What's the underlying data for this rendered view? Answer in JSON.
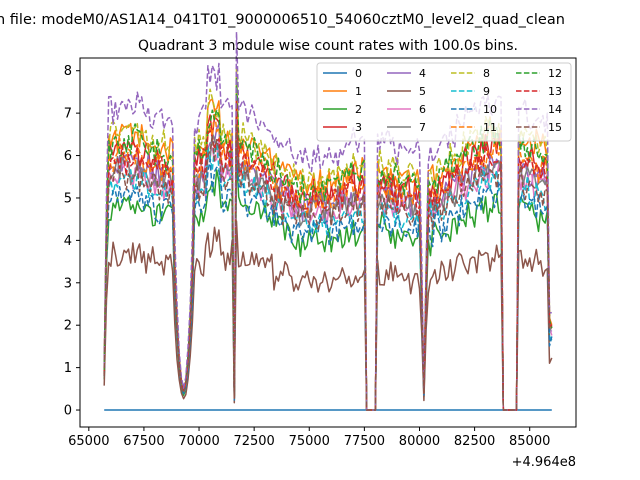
{
  "figure": {
    "suptitle": "n file: modeM0/AS1A14_041T01_9000006510_54060cztM0_level2_quad_clean"
  },
  "chart_data": {
    "type": "line",
    "title": "Quadrant 3 module wise count rates with 100.0s bins.",
    "xlabel": "",
    "ylabel": "",
    "x_offset_label": "+4.964e8",
    "xlim": [
      64600,
      87100
    ],
    "ylim": [
      -0.4,
      8.3
    ],
    "x_ticks": [
      65000,
      67500,
      70000,
      72500,
      75000,
      77500,
      80000,
      82500,
      85000
    ],
    "x_tick_labels": [
      "65000",
      "67500",
      "70000",
      "72500",
      "75000",
      "77500",
      "80000",
      "82500",
      "85000"
    ],
    "y_ticks": [
      0,
      1,
      2,
      3,
      4,
      5,
      6,
      7,
      8
    ],
    "y_tick_labels": [
      "0",
      "1",
      "2",
      "3",
      "4",
      "5",
      "6",
      "7",
      "8"
    ],
    "grid": false,
    "legend": {
      "location": "top-right",
      "columns": 4
    },
    "x_start": 65700,
    "x_end": 86000,
    "bin_seconds": 100,
    "dips": [
      {
        "start": 68900,
        "end": 69700,
        "type": "saa"
      },
      {
        "start": 71600,
        "end": 71750,
        "type": "spike"
      },
      {
        "start": 77550,
        "end": 78000,
        "type": "gap"
      },
      {
        "start": 80100,
        "end": 80300,
        "type": "saa"
      },
      {
        "start": 83750,
        "end": 84450,
        "type": "gap"
      },
      {
        "start": 85900,
        "end": 86000,
        "type": "edge"
      }
    ],
    "series": [
      {
        "name": "0",
        "color": "#1f77b4",
        "dash": "solid",
        "level": 0.0
      },
      {
        "name": "1",
        "color": "#ff7f0e",
        "dash": "solid",
        "level": 5.9
      },
      {
        "name": "2",
        "color": "#2ca02c",
        "dash": "solid",
        "level": 4.4
      },
      {
        "name": "3",
        "color": "#d62728",
        "dash": "solid",
        "level": 5.6
      },
      {
        "name": "4",
        "color": "#9467bd",
        "dash": "solid",
        "level": 5.3
      },
      {
        "name": "5",
        "color": "#8c564b",
        "dash": "solid",
        "level": 3.3
      },
      {
        "name": "6",
        "color": "#e377c2",
        "dash": "solid",
        "level": 5.1
      },
      {
        "name": "7",
        "color": "#7f7f7f",
        "dash": "solid",
        "level": 5.2
      },
      {
        "name": "8",
        "color": "#bcbd22",
        "dash": "dashed",
        "level": 6.0
      },
      {
        "name": "9",
        "color": "#17becf",
        "dash": "dashed",
        "level": 4.9
      },
      {
        "name": "10",
        "color": "#1f77b4",
        "dash": "dashed",
        "level": 4.6
      },
      {
        "name": "11",
        "color": "#ff7f0e",
        "dash": "dashed",
        "level": 5.5
      },
      {
        "name": "12",
        "color": "#2ca02c",
        "dash": "dashed",
        "level": 5.8
      },
      {
        "name": "13",
        "color": "#d62728",
        "dash": "dashed",
        "level": 5.4
      },
      {
        "name": "14",
        "color": "#9467bd",
        "dash": "dashed",
        "level": 6.6
      },
      {
        "name": "15",
        "color": "#8c564b",
        "dash": "dashed",
        "level": 5.0
      }
    ]
  }
}
